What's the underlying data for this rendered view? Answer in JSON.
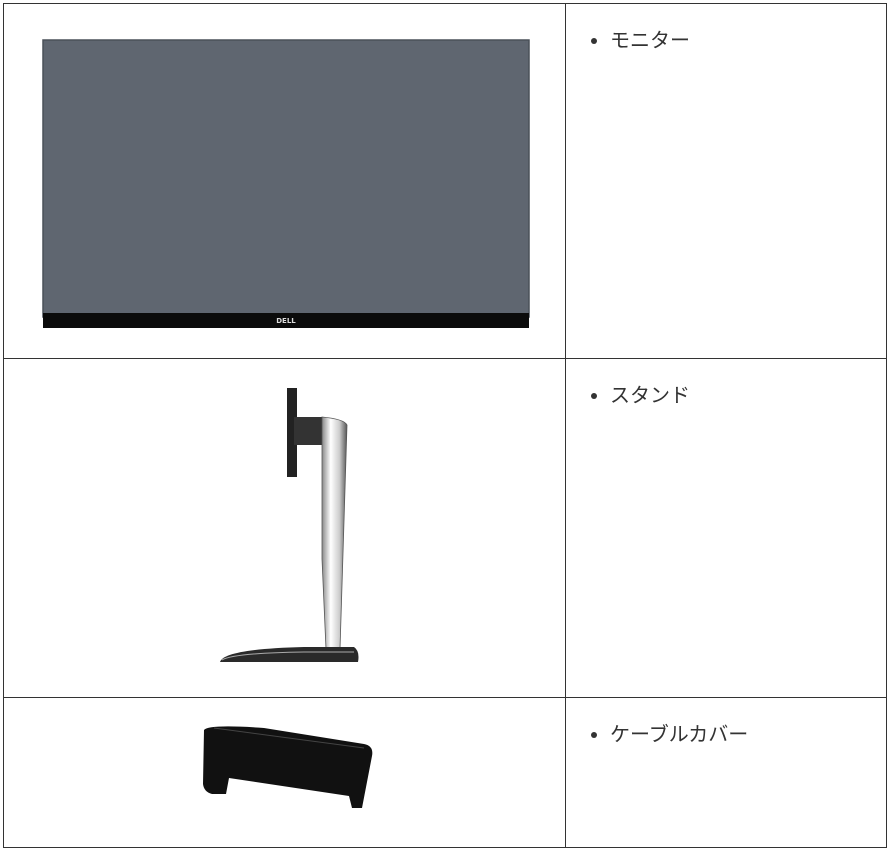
{
  "table": {
    "rows": [
      {
        "item": "モニター",
        "logo": "DELL"
      },
      {
        "item": "スタンド"
      },
      {
        "item": "ケーブルカバー"
      }
    ]
  }
}
